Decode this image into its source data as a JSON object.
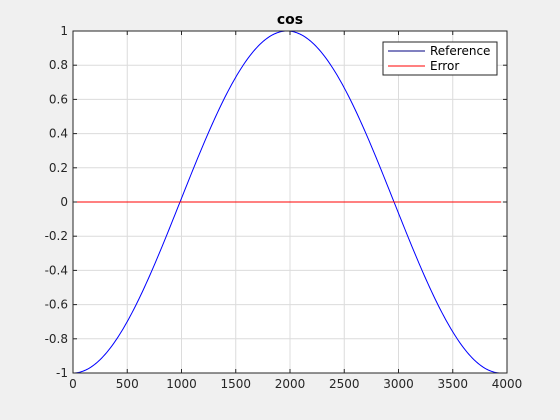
{
  "chart_data": {
    "type": "line",
    "title": "cos",
    "xlabel": "",
    "ylabel": "",
    "xlim": [
      0,
      4000
    ],
    "ylim": [
      -1,
      1
    ],
    "xticks": [
      0,
      500,
      1000,
      1500,
      2000,
      2500,
      3000,
      3500,
      4000
    ],
    "yticks": [
      -1,
      -0.8,
      -0.6,
      -0.4,
      -0.2,
      0,
      0.2,
      0.4,
      0.6,
      0.8,
      1
    ],
    "grid": true,
    "legend_position": "top-right",
    "series": [
      {
        "name": "Reference",
        "color": "#0000ff",
        "legend_color": "#000080",
        "function": "cos",
        "x_start": 0,
        "x_end": 3945,
        "period": 3945,
        "phase_shift_x": 1972.5,
        "amplitude": 1
      },
      {
        "name": "Error",
        "color": "#ff0000",
        "x": [
          0,
          3945
        ],
        "y": [
          0,
          0
        ]
      }
    ]
  }
}
